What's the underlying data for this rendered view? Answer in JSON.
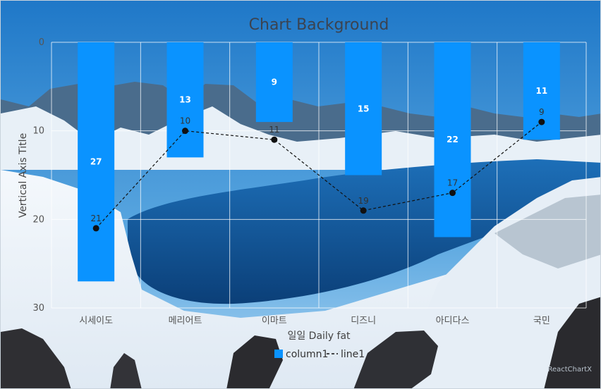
{
  "chart_data": {
    "type": "bar",
    "title": "Chart Background",
    "xlabel": "일일 Daily fat",
    "ylabel": "Vertical Axis Title",
    "categories": [
      "시세이도",
      "메리어트",
      "이마트",
      "디즈니",
      "아디다스",
      "국민"
    ],
    "ylim": [
      0,
      30
    ],
    "y_reversed": true,
    "y_ticks": [
      0,
      10,
      20,
      30
    ],
    "grid": true,
    "legend_position": "bottom",
    "series": [
      {
        "name": "column1",
        "type": "bar",
        "color": "#0a93ff",
        "values": [
          27,
          13,
          9,
          15,
          22,
          11
        ]
      },
      {
        "name": "line1",
        "type": "line",
        "style": "dashed",
        "color": "#111111",
        "values": [
          21,
          10,
          11,
          19,
          17,
          9
        ]
      }
    ]
  },
  "footer": {
    "watermark": "ReactChartX"
  }
}
